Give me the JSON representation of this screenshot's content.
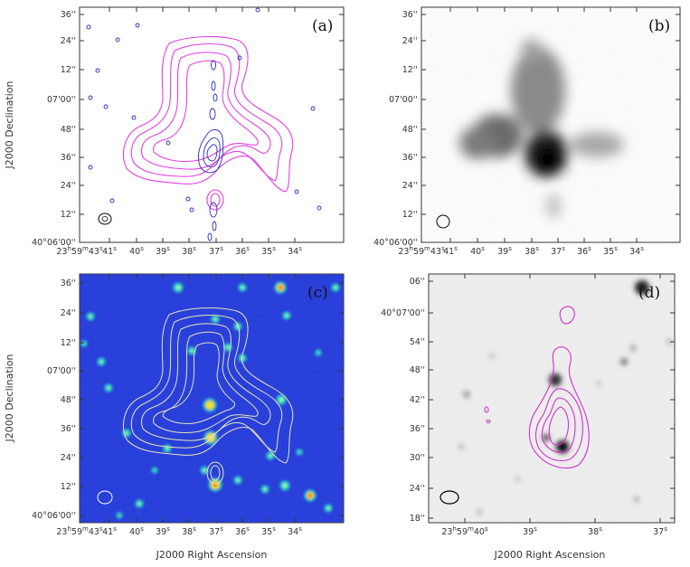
{
  "panels": [
    {
      "id": "a",
      "label": "(a)",
      "y_ticks": [
        "36''",
        "24''",
        "12''",
        "07'00''",
        "48''",
        "36''",
        "24''",
        "12''",
        "40°06'00''"
      ],
      "x_ticks": [
        "23h59m43s",
        "41s",
        "40s",
        "39s",
        "38s",
        "37s",
        "36s",
        "35s",
        "34s"
      ],
      "y_axis_label": "J2000 Declination",
      "x_axis_label": "",
      "colors": {
        "background": "#ffffff",
        "contour": "#e040e0",
        "contour2": "#2a2ab8"
      }
    },
    {
      "id": "b",
      "label": "(b)",
      "y_ticks": [
        "36''",
        "24''",
        "12''",
        "07'00''",
        "48''",
        "36''",
        "24''",
        "12''",
        "40°06'00''"
      ],
      "x_ticks": [
        "23h59m43s",
        "41s",
        "40s",
        "39s",
        "38s",
        "37s",
        "36s",
        "35s",
        "34s"
      ],
      "y_axis_label": "",
      "x_axis_label": "",
      "colors": {
        "background": "#ffffff",
        "emission": "#000000"
      }
    },
    {
      "id": "c",
      "label": "(c)",
      "y_ticks": [
        "36''",
        "24''",
        "12''",
        "07'00''",
        "48''",
        "36''",
        "24''",
        "12''",
        "40°06'00''"
      ],
      "x_ticks": [
        "23h59m43s",
        "41s",
        "40s",
        "39s",
        "38s",
        "37s",
        "36s",
        "35s",
        "34s"
      ],
      "y_axis_label": "J2000 Declination",
      "x_axis_label": "J2000 Right Ascension",
      "colors": {
        "background": "#1f33d6",
        "contour": "#e0e0b0",
        "star": "#22e0c0"
      }
    },
    {
      "id": "d",
      "label": "(d)",
      "y_ticks": [
        "06''",
        "40°07'00''",
        "54''",
        "48''",
        "42''",
        "36''",
        "30''",
        "24''",
        "18''"
      ],
      "x_ticks": [
        "23h59m40s",
        "39s",
        "38s",
        "37s"
      ],
      "y_axis_label": "",
      "x_axis_label": "J2000 Right Ascension",
      "colors": {
        "background": "#f0f0f0",
        "contour": "#d030d0"
      }
    }
  ]
}
